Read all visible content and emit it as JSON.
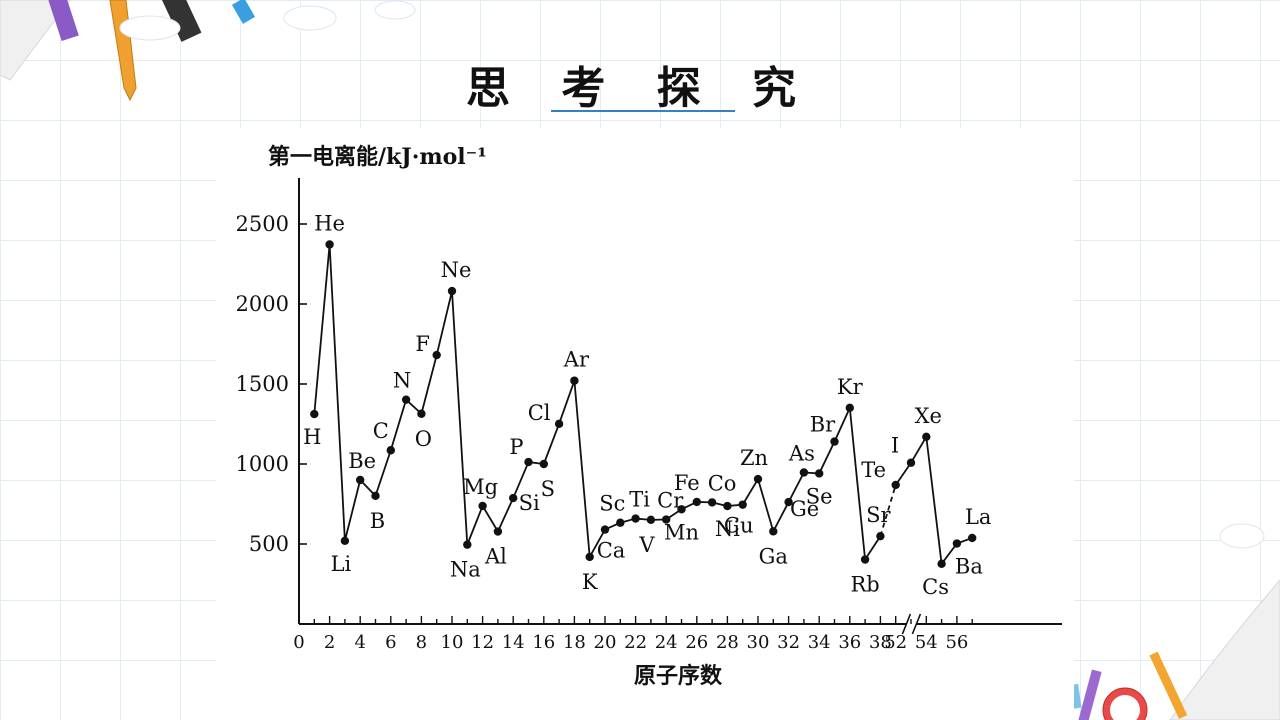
{
  "slide": {
    "title": "思 考 探 究"
  },
  "colors": {
    "accent_line": "#3a7fc1",
    "grid": "#e3ebf5",
    "ink": "#111111"
  },
  "chart_data": {
    "type": "line",
    "ylabel": "第一电离能/kJ·mol⁻¹",
    "xlabel": "原子序数",
    "x_ticks": [
      "0",
      "2",
      "4",
      "6",
      "8",
      "10",
      "12",
      "14",
      "16",
      "18",
      "20",
      "22",
      "24",
      "26",
      "28",
      "30",
      "32",
      "34",
      "36",
      "38",
      "52",
      "54",
      "56"
    ],
    "y_ticks": [
      "500",
      "1000",
      "1500",
      "2000",
      "2500"
    ],
    "ylim": [
      0,
      2800
    ],
    "xlim": [
      0,
      57
    ],
    "x_axis_break_between": [
      38,
      52
    ],
    "grid": false,
    "series": [
      {
        "points": [
          {
            "x": 1,
            "y": 1312,
            "label": "H"
          },
          {
            "x": 2,
            "y": 2372,
            "label": "He"
          },
          {
            "x": 3,
            "y": 520,
            "label": "Li"
          },
          {
            "x": 4,
            "y": 900,
            "label": "Be"
          },
          {
            "x": 5,
            "y": 801,
            "label": "B"
          },
          {
            "x": 6,
            "y": 1086,
            "label": "C"
          },
          {
            "x": 7,
            "y": 1402,
            "label": "N"
          },
          {
            "x": 8,
            "y": 1314,
            "label": "O"
          },
          {
            "x": 9,
            "y": 1681,
            "label": "F"
          },
          {
            "x": 10,
            "y": 2081,
            "label": "Ne"
          },
          {
            "x": 11,
            "y": 496,
            "label": "Na"
          },
          {
            "x": 12,
            "y": 738,
            "label": "Mg"
          },
          {
            "x": 13,
            "y": 578,
            "label": "Al"
          },
          {
            "x": 14,
            "y": 787,
            "label": "Si"
          },
          {
            "x": 15,
            "y": 1012,
            "label": "P"
          },
          {
            "x": 16,
            "y": 1000,
            "label": "S"
          },
          {
            "x": 17,
            "y": 1251,
            "label": "Cl"
          },
          {
            "x": 18,
            "y": 1521,
            "label": "Ar"
          },
          {
            "x": 19,
            "y": 419,
            "label": "K"
          },
          {
            "x": 20,
            "y": 590,
            "label": "Ca"
          },
          {
            "x": 21,
            "y": 633,
            "label": "Sc"
          },
          {
            "x": 22,
            "y": 659,
            "label": "Ti"
          },
          {
            "x": 23,
            "y": 651,
            "label": "V"
          },
          {
            "x": 24,
            "y": 653,
            "label": "Cr"
          },
          {
            "x": 25,
            "y": 717,
            "label": "Mn"
          },
          {
            "x": 26,
            "y": 763,
            "label": "Fe"
          },
          {
            "x": 27,
            "y": 760,
            "label": "Co"
          },
          {
            "x": 28,
            "y": 737,
            "label": "Ni"
          },
          {
            "x": 29,
            "y": 746,
            "label": "Cu"
          },
          {
            "x": 30,
            "y": 906,
            "label": "Zn"
          },
          {
            "x": 31,
            "y": 579,
            "label": "Ga"
          },
          {
            "x": 32,
            "y": 762,
            "label": "Ge"
          },
          {
            "x": 33,
            "y": 947,
            "label": "As"
          },
          {
            "x": 34,
            "y": 941,
            "label": "Se"
          },
          {
            "x": 35,
            "y": 1140,
            "label": "Br"
          },
          {
            "x": 36,
            "y": 1351,
            "label": "Kr"
          },
          {
            "x": 37,
            "y": 403,
            "label": "Rb"
          },
          {
            "x": 38,
            "y": 549,
            "label": "Sr"
          },
          {
            "x": 52,
            "y": 869,
            "label": "Te"
          },
          {
            "x": 53,
            "y": 1008,
            "label": "I"
          },
          {
            "x": 54,
            "y": 1170,
            "label": "Xe"
          },
          {
            "x": 55,
            "y": 376,
            "label": "Cs"
          },
          {
            "x": 56,
            "y": 503,
            "label": "Ba"
          },
          {
            "x": 57,
            "y": 538,
            "label": "La"
          }
        ]
      }
    ]
  }
}
